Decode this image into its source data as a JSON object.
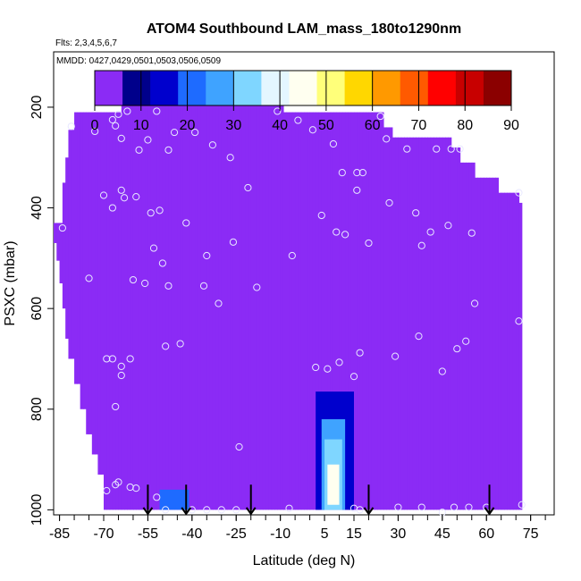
{
  "chart_data": {
    "type": "heatmap",
    "title": "ATOM4 Southbound LAM_mass_180to1290nm",
    "subtitle": "Flts: 2,3,4,5,6,7",
    "annotation": "MMDD: 0427,0429,0501,0503,0506,0509",
    "xlabel": "Latitude (deg N)",
    "ylabel": "PSXC (mbar)",
    "xlim": [
      -87,
      83
    ],
    "ylim": [
      1010,
      90
    ],
    "y_reversed": true,
    "x_ticks": [
      -85,
      -70,
      -55,
      -40,
      -25,
      -10,
      5,
      15,
      30,
      45,
      60,
      75
    ],
    "x_tick_labels": [
      "-85",
      "-70",
      "-55",
      "-40",
      "-25",
      "-10",
      "5",
      "15",
      "30",
      "45",
      "60",
      "75"
    ],
    "x_minor_step": 5,
    "y_ticks": [
      200,
      400,
      600,
      800,
      1000
    ],
    "y_tick_labels": [
      "200",
      "400",
      "600",
      "800",
      "1000"
    ],
    "colorbar": {
      "min": 0,
      "max": 90,
      "ticks": [
        0,
        10,
        20,
        30,
        40,
        50,
        60,
        70,
        80,
        90
      ],
      "tick_labels": [
        "0",
        "10",
        "20",
        "30",
        "40",
        "50",
        "60",
        "70",
        "80",
        "90"
      ],
      "colors": [
        "#8B2BF5",
        "#00008B",
        "#0000CD",
        "#1E6BFF",
        "#3FA3FF",
        "#7FD6FF",
        "#E4F6FF",
        "#FFFFF0",
        "#FFFF7A",
        "#FFD700",
        "#FF9900",
        "#FF5A00",
        "#FF0000",
        "#C80000",
        "#8B0000"
      ]
    },
    "background_value": 0,
    "hot_spots": [
      {
        "lat": [
          -51,
          -41
        ],
        "p": [
          960,
          1000
        ],
        "value": 20
      },
      {
        "lat": [
          2,
          15
        ],
        "p": [
          765,
          1000
        ],
        "value": 12
      },
      {
        "lat": [
          4,
          12
        ],
        "p": [
          820,
          1000
        ],
        "value": 25
      },
      {
        "lat": [
          5,
          11
        ],
        "p": [
          860,
          1000
        ],
        "value": 35
      },
      {
        "lat": [
          6,
          10
        ],
        "p": [
          910,
          990
        ],
        "value": 45
      }
    ],
    "coverage_top_by_lat": [
      {
        "lat": [
          -87,
          -84
        ],
        "p": 430
      },
      {
        "lat": [
          -84,
          -83
        ],
        "p": 350
      },
      {
        "lat": [
          -83,
          -82
        ],
        "p": 300
      },
      {
        "lat": [
          -82,
          -80
        ],
        "p": 245
      },
      {
        "lat": [
          -80,
          -64
        ],
        "p": 210
      },
      {
        "lat": [
          -64,
          -9
        ],
        "p": 190
      },
      {
        "lat": [
          -9,
          25
        ],
        "p": 210
      },
      {
        "lat": [
          25,
          28
        ],
        "p": 240
      },
      {
        "lat": [
          28,
          48
        ],
        "p": 260
      },
      {
        "lat": [
          48,
          51
        ],
        "p": 280
      },
      {
        "lat": [
          51,
          56
        ],
        "p": 310
      },
      {
        "lat": [
          56,
          64
        ],
        "p": 340
      },
      {
        "lat": [
          64,
          71
        ],
        "p": 370
      },
      {
        "lat": [
          71,
          72
        ],
        "p": 390
      }
    ],
    "coverage_bottom_by_lat": [
      {
        "lat": [
          -87,
          -86
        ],
        "p": 470
      },
      {
        "lat": [
          -86,
          -85
        ],
        "p": 505
      },
      {
        "lat": [
          -85,
          -84
        ],
        "p": 550
      },
      {
        "lat": [
          -84,
          -83
        ],
        "p": 600
      },
      {
        "lat": [
          -83,
          -82
        ],
        "p": 660
      },
      {
        "lat": [
          -82,
          -80
        ],
        "p": 700
      },
      {
        "lat": [
          -80,
          -78
        ],
        "p": 750
      },
      {
        "lat": [
          -78,
          -76
        ],
        "p": 800
      },
      {
        "lat": [
          -76,
          -74
        ],
        "p": 850
      },
      {
        "lat": [
          -74,
          -72
        ],
        "p": 890
      },
      {
        "lat": [
          -72,
          -70
        ],
        "p": 930
      },
      {
        "lat": [
          -70,
          72
        ],
        "p": 1000
      }
    ],
    "profile_arrows_lat": [
      -55,
      -42,
      -20,
      20,
      61
    ],
    "points": [
      {
        "lat": -84,
        "p": 440
      },
      {
        "lat": -81,
        "p": 238
      },
      {
        "lat": -75,
        "p": 540
      },
      {
        "lat": -73,
        "p": 248
      },
      {
        "lat": -70,
        "p": 375
      },
      {
        "lat": -69,
        "p": 700
      },
      {
        "lat": -69,
        "p": 962
      },
      {
        "lat": -67,
        "p": 700
      },
      {
        "lat": -67,
        "p": 400
      },
      {
        "lat": -67,
        "p": 225
      },
      {
        "lat": -66,
        "p": 795
      },
      {
        "lat": -66,
        "p": 950
      },
      {
        "lat": -66,
        "p": 237
      },
      {
        "lat": -65,
        "p": 214
      },
      {
        "lat": -65,
        "p": 945
      },
      {
        "lat": -64,
        "p": 365
      },
      {
        "lat": -64,
        "p": 733
      },
      {
        "lat": -64,
        "p": 715
      },
      {
        "lat": -64,
        "p": 262
      },
      {
        "lat": -63,
        "p": 380
      },
      {
        "lat": -62,
        "p": 208
      },
      {
        "lat": -61,
        "p": 955
      },
      {
        "lat": -61,
        "p": 700
      },
      {
        "lat": -60,
        "p": 543
      },
      {
        "lat": -59,
        "p": 378
      },
      {
        "lat": -59,
        "p": 957
      },
      {
        "lat": -58,
        "p": 285
      },
      {
        "lat": -56,
        "p": 550
      },
      {
        "lat": -55,
        "p": 265
      },
      {
        "lat": -54,
        "p": 410
      },
      {
        "lat": -53,
        "p": 480
      },
      {
        "lat": -52,
        "p": 975
      },
      {
        "lat": -52,
        "p": 208
      },
      {
        "lat": -51,
        "p": 405
      },
      {
        "lat": -50,
        "p": 510
      },
      {
        "lat": -49,
        "p": 1000
      },
      {
        "lat": -49,
        "p": 675
      },
      {
        "lat": -48,
        "p": 285
      },
      {
        "lat": -48,
        "p": 555
      },
      {
        "lat": -46,
        "p": 250
      },
      {
        "lat": -44,
        "p": 670
      },
      {
        "lat": -42,
        "p": 430
      },
      {
        "lat": -40,
        "p": 1000
      },
      {
        "lat": -39,
        "p": 250
      },
      {
        "lat": -36,
        "p": 555
      },
      {
        "lat": -35,
        "p": 495
      },
      {
        "lat": -35,
        "p": 1000
      },
      {
        "lat": -33,
        "p": 275
      },
      {
        "lat": -31,
        "p": 590
      },
      {
        "lat": -30,
        "p": 1000
      },
      {
        "lat": -27,
        "p": 300
      },
      {
        "lat": -26,
        "p": 468
      },
      {
        "lat": -25,
        "p": 1000
      },
      {
        "lat": -24,
        "p": 875
      },
      {
        "lat": -21,
        "p": 360
      },
      {
        "lat": -18,
        "p": 558
      },
      {
        "lat": -11,
        "p": 208
      },
      {
        "lat": -7,
        "p": 997
      },
      {
        "lat": -6,
        "p": 495
      },
      {
        "lat": -4,
        "p": 226
      },
      {
        "lat": 1,
        "p": 245
      },
      {
        "lat": 2,
        "p": 717
      },
      {
        "lat": 4,
        "p": 415
      },
      {
        "lat": 6,
        "p": 720
      },
      {
        "lat": 8,
        "p": 273
      },
      {
        "lat": 9,
        "p": 448
      },
      {
        "lat": 10,
        "p": 707
      },
      {
        "lat": 11,
        "p": 330
      },
      {
        "lat": 12,
        "p": 453
      },
      {
        "lat": 15,
        "p": 735
      },
      {
        "lat": 15,
        "p": 997
      },
      {
        "lat": 16,
        "p": 330
      },
      {
        "lat": 16,
        "p": 365
      },
      {
        "lat": 17,
        "p": 688
      },
      {
        "lat": 17,
        "p": 1000
      },
      {
        "lat": 18,
        "p": 330
      },
      {
        "lat": 20,
        "p": 470
      },
      {
        "lat": 24,
        "p": 218
      },
      {
        "lat": 26,
        "p": 263
      },
      {
        "lat": 27,
        "p": 390
      },
      {
        "lat": 29,
        "p": 695
      },
      {
        "lat": 30,
        "p": 995
      },
      {
        "lat": 33,
        "p": 283
      },
      {
        "lat": 36,
        "p": 410
      },
      {
        "lat": 37,
        "p": 655
      },
      {
        "lat": 38,
        "p": 995
      },
      {
        "lat": 38,
        "p": 475
      },
      {
        "lat": 41,
        "p": 448
      },
      {
        "lat": 43,
        "p": 283
      },
      {
        "lat": 45,
        "p": 1005
      },
      {
        "lat": 45,
        "p": 725
      },
      {
        "lat": 47,
        "p": 435
      },
      {
        "lat": 48,
        "p": 283
      },
      {
        "lat": 49,
        "p": 995
      },
      {
        "lat": 50,
        "p": 680
      },
      {
        "lat": 51,
        "p": 283
      },
      {
        "lat": 53,
        "p": 665
      },
      {
        "lat": 54,
        "p": 995
      },
      {
        "lat": 55,
        "p": 450
      },
      {
        "lat": 56,
        "p": 590
      },
      {
        "lat": 60,
        "p": 995
      },
      {
        "lat": 71,
        "p": 625
      },
      {
        "lat": 71,
        "p": 370
      },
      {
        "lat": 72,
        "p": 990
      }
    ]
  }
}
